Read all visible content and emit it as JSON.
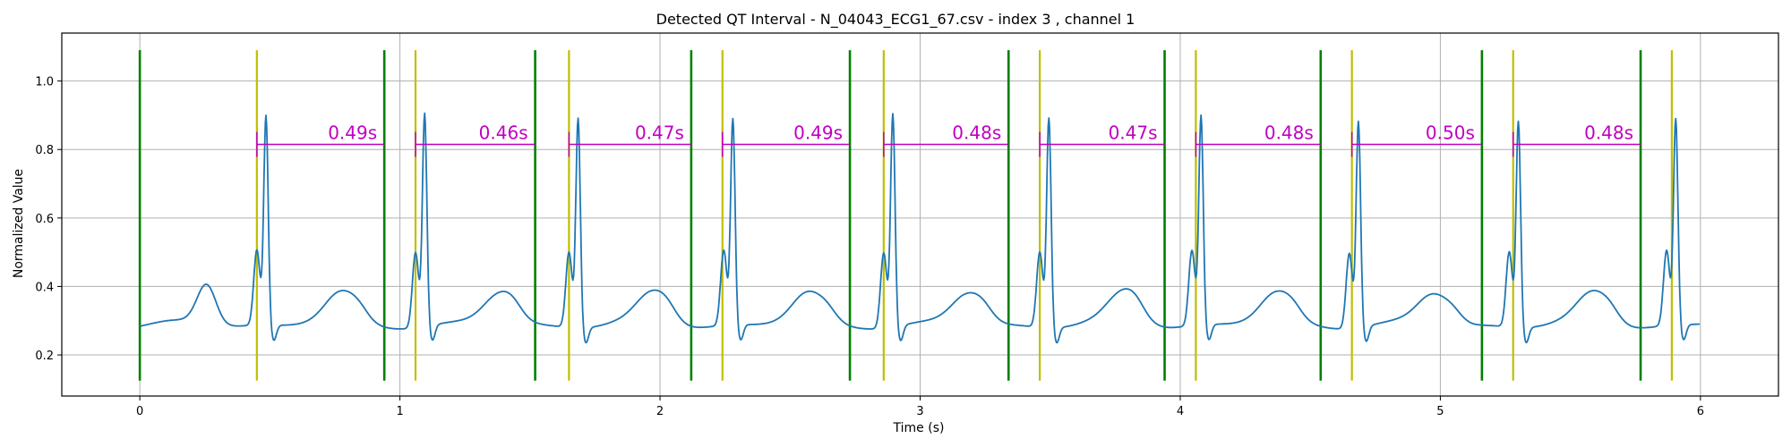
{
  "chart_data": {
    "type": "line",
    "title": "Detected QT Interval - N_04043_ECG1_67.csv - index 3 , channel 1",
    "xlabel": "Time (s)",
    "ylabel": "Normalized Value",
    "xlim": [
      -0.3,
      6.3
    ],
    "ylim": [
      0.08,
      1.14
    ],
    "grid": true,
    "x_ticks": [
      0,
      1,
      2,
      3,
      4,
      5,
      6
    ],
    "x_tick_labels": [
      "0",
      "1",
      "2",
      "3",
      "4",
      "5",
      "6"
    ],
    "y_ticks": [
      0.2,
      0.4,
      0.6,
      0.8,
      1.0
    ],
    "y_tick_labels": [
      "0.2",
      "0.4",
      "0.6",
      "0.8",
      "1.0"
    ],
    "r_peak_times": [
      0.485,
      1.095,
      1.685,
      2.28,
      2.895,
      3.495,
      4.08,
      4.685,
      5.3,
      5.905
    ],
    "r_peak_heights": [
      0.94,
      0.95,
      0.94,
      0.93,
      0.95,
      0.94,
      0.94,
      0.93,
      0.93,
      0.93
    ],
    "baseline": 0.28,
    "series_color": "#1f77b4",
    "q_onsets": {
      "color": "#bfbf00",
      "times": [
        0.45,
        1.06,
        1.65,
        2.24,
        2.86,
        3.46,
        4.06,
        4.66,
        5.28,
        5.89
      ]
    },
    "t_ends": {
      "color": "#008000",
      "times": [
        0.0,
        0.94,
        1.52,
        2.12,
        2.73,
        3.34,
        3.94,
        4.54,
        5.16,
        5.77
      ]
    },
    "qt_intervals": {
      "color": "#c000c0",
      "y": 0.815,
      "items": [
        {
          "start": 0.45,
          "end": 0.94,
          "label": "0.49s"
        },
        {
          "start": 1.06,
          "end": 1.52,
          "label": "0.46s"
        },
        {
          "start": 1.65,
          "end": 2.12,
          "label": "0.47s"
        },
        {
          "start": 2.24,
          "end": 2.73,
          "label": "0.49s"
        },
        {
          "start": 2.86,
          "end": 3.34,
          "label": "0.48s"
        },
        {
          "start": 3.46,
          "end": 3.94,
          "label": "0.47s"
        },
        {
          "start": 4.06,
          "end": 4.54,
          "label": "0.48s"
        },
        {
          "start": 4.66,
          "end": 5.16,
          "label": "0.50s"
        },
        {
          "start": 5.28,
          "end": 5.77,
          "label": "0.48s"
        }
      ]
    },
    "marker_line_range": [
      0.125,
      1.09
    ]
  }
}
